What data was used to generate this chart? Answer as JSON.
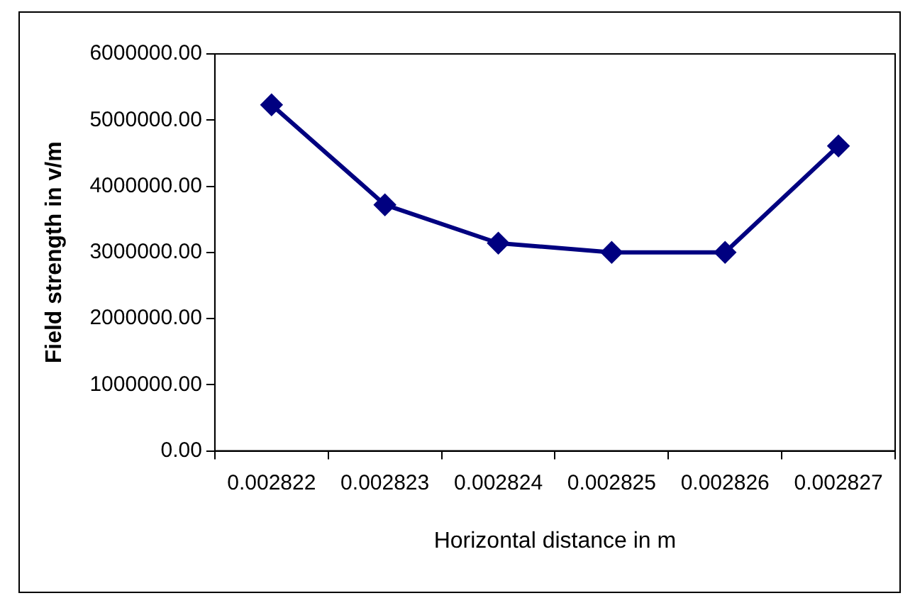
{
  "chart_data": {
    "type": "line",
    "xlabel": "Horizontal distance in m",
    "ylabel": "Field strength in v/m",
    "categories": [
      "0.002822",
      "0.002823",
      "0.002824",
      "0.002825",
      "0.002826",
      "0.002827"
    ],
    "series": [
      {
        "color": "#000080",
        "values": [
          5230000,
          3720000,
          3140000,
          3000000,
          3000000,
          4610000
        ]
      }
    ],
    "ylim": [
      0,
      6000000
    ],
    "yticks": [
      {
        "value": 0,
        "label": "0.00"
      },
      {
        "value": 1000000,
        "label": "1000000.00"
      },
      {
        "value": 2000000,
        "label": "2000000.00"
      },
      {
        "value": 3000000,
        "label": "3000000.00"
      },
      {
        "value": 4000000,
        "label": "4000000.00"
      },
      {
        "value": 5000000,
        "label": "5000000.00"
      },
      {
        "value": 6000000,
        "label": "6000000.00"
      }
    ],
    "grid": false,
    "legend": false,
    "marker": "diamond",
    "line_style": "solid"
  }
}
